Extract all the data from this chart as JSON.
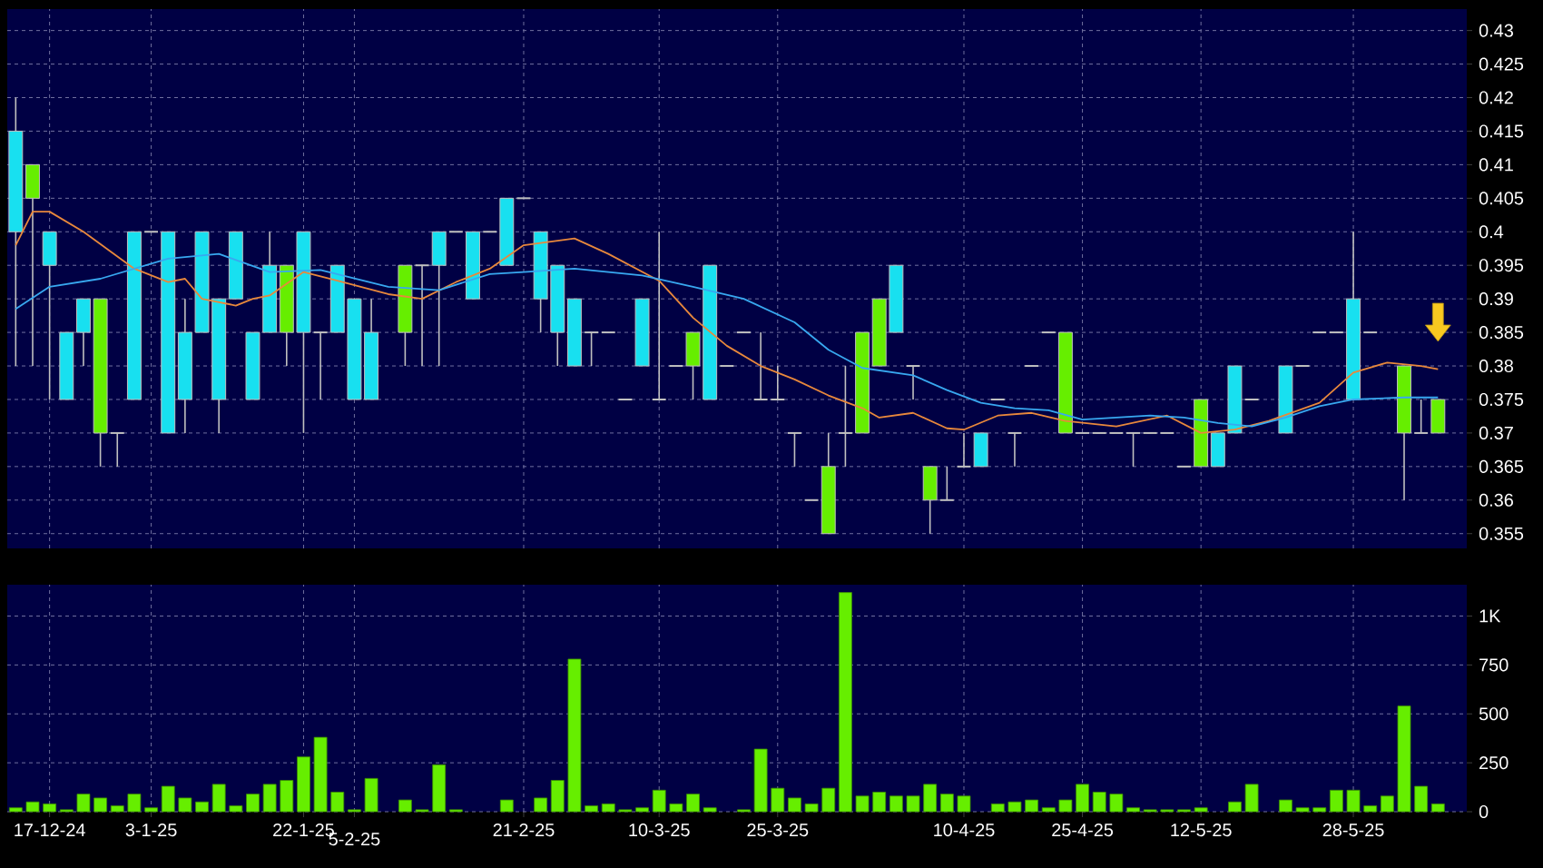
{
  "chart_data": [
    {
      "type": "candlestick",
      "categories": [
        null,
        null,
        null,
        null,
        null,
        null,
        null,
        null,
        null,
        null,
        null,
        null,
        null,
        null,
        null,
        null,
        null,
        null,
        null,
        null,
        null,
        null,
        null,
        null,
        null,
        null,
        null,
        null,
        null,
        null,
        null,
        null,
        null,
        null,
        null,
        null,
        null,
        null,
        null,
        null,
        null,
        null,
        null,
        null,
        null,
        null,
        null,
        null,
        null,
        null,
        null,
        null,
        null,
        null,
        null,
        null,
        null,
        null,
        null,
        null,
        null,
        null,
        null,
        null,
        null,
        null,
        null,
        null,
        null,
        null,
        null,
        null,
        null,
        null,
        null,
        null,
        null,
        null,
        null,
        null,
        null,
        null,
        null,
        null,
        null
      ],
      "ohlc": [
        [
          0.415,
          0.42,
          0.38,
          0.4
        ],
        [
          0.405,
          0.41,
          0.38,
          0.41
        ],
        [
          0.4,
          0.4,
          0.375,
          0.395
        ],
        [
          0.385,
          0.385,
          0.375,
          0.375
        ],
        [
          0.39,
          0.39,
          0.38,
          0.385
        ],
        [
          0.37,
          0.39,
          0.365,
          0.39
        ],
        [
          0.37,
          0.37,
          0.365,
          0.37
        ],
        [
          0.4,
          0.4,
          0.375,
          0.375
        ],
        [
          0.4,
          0.4,
          0.4,
          0.4
        ],
        [
          0.4,
          0.4,
          0.37,
          0.37
        ],
        [
          0.385,
          0.39,
          0.37,
          0.375
        ],
        [
          0.4,
          0.4,
          0.385,
          0.385
        ],
        [
          0.39,
          0.39,
          0.37,
          0.375
        ],
        [
          0.4,
          0.4,
          0.39,
          0.39
        ],
        [
          0.385,
          0.385,
          0.375,
          0.375
        ],
        [
          0.395,
          0.4,
          0.385,
          0.385
        ],
        [
          0.385,
          0.395,
          0.38,
          0.395
        ],
        [
          0.4,
          0.4,
          0.37,
          0.385
        ],
        [
          0.385,
          0.385,
          0.375,
          0.385
        ],
        [
          0.395,
          0.395,
          0.385,
          0.385
        ],
        [
          0.39,
          0.39,
          0.375,
          0.375
        ],
        [
          0.385,
          0.39,
          0.375,
          0.375
        ],
        null,
        [
          0.385,
          0.395,
          0.38,
          0.395
        ],
        [
          0.395,
          0.395,
          0.38,
          0.395
        ],
        [
          0.4,
          0.4,
          0.38,
          0.395
        ],
        [
          0.4,
          0.4,
          0.4,
          0.4
        ],
        [
          0.4,
          0.4,
          0.39,
          0.39
        ],
        [
          0.4,
          0.4,
          0.4,
          0.4
        ],
        [
          0.405,
          0.405,
          0.395,
          0.395
        ],
        [
          0.405,
          0.405,
          0.405,
          0.405
        ],
        [
          0.4,
          0.4,
          0.385,
          0.39
        ],
        [
          0.395,
          0.395,
          0.38,
          0.385
        ],
        [
          0.39,
          0.39,
          0.38,
          0.38
        ],
        [
          0.385,
          0.385,
          0.38,
          0.385
        ],
        [
          0.385,
          0.385,
          0.385,
          0.385
        ],
        [
          0.375,
          0.375,
          0.375,
          0.375
        ],
        [
          0.39,
          0.39,
          0.38,
          0.38
        ],
        [
          0.375,
          0.4,
          0.375,
          0.375
        ],
        [
          0.38,
          0.38,
          0.38,
          0.38
        ],
        [
          0.38,
          0.385,
          0.375,
          0.385
        ],
        [
          0.395,
          0.395,
          0.375,
          0.375
        ],
        [
          0.38,
          0.38,
          0.38,
          0.38
        ],
        [
          0.385,
          0.385,
          0.385,
          0.385
        ],
        [
          0.375,
          0.385,
          0.375,
          0.375
        ],
        [
          0.375,
          0.38,
          0.375,
          0.375
        ],
        [
          0.37,
          0.37,
          0.365,
          0.37
        ],
        [
          0.36,
          0.36,
          0.36,
          0.36
        ],
        [
          0.355,
          0.37,
          0.355,
          0.365
        ],
        [
          0.37,
          0.38,
          0.365,
          0.37
        ],
        [
          0.37,
          0.385,
          0.37,
          0.385
        ],
        [
          0.38,
          0.39,
          0.38,
          0.39
        ],
        [
          0.395,
          0.395,
          0.385,
          0.385
        ],
        [
          0.38,
          0.38,
          0.375,
          0.38
        ],
        [
          0.36,
          0.365,
          0.355,
          0.365
        ],
        [
          0.36,
          0.365,
          0.36,
          0.36
        ],
        [
          0.365,
          0.37,
          0.365,
          0.365
        ],
        [
          0.37,
          0.37,
          0.365,
          0.365
        ],
        [
          0.375,
          0.375,
          0.375,
          0.375
        ],
        [
          0.37,
          0.37,
          0.365,
          0.37
        ],
        [
          0.38,
          0.38,
          0.38,
          0.38
        ],
        [
          0.385,
          0.385,
          0.385,
          0.385
        ],
        [
          0.37,
          0.385,
          0.37,
          0.385
        ],
        [
          0.37,
          0.37,
          0.37,
          0.37
        ],
        [
          0.37,
          0.37,
          0.37,
          0.37
        ],
        [
          0.37,
          0.37,
          0.37,
          0.37
        ],
        [
          0.37,
          0.37,
          0.365,
          0.37
        ],
        [
          0.37,
          0.37,
          0.37,
          0.37
        ],
        [
          0.37,
          0.37,
          0.37,
          0.37
        ],
        [
          0.365,
          0.365,
          0.365,
          0.365
        ],
        [
          0.365,
          0.375,
          0.365,
          0.375
        ],
        [
          0.37,
          0.37,
          0.365,
          0.365
        ],
        [
          0.38,
          0.38,
          0.37,
          0.37
        ],
        [
          0.375,
          0.375,
          0.375,
          0.375
        ],
        null,
        [
          0.38,
          0.38,
          0.37,
          0.37
        ],
        [
          0.38,
          0.38,
          0.38,
          0.38
        ],
        [
          0.385,
          0.385,
          0.385,
          0.385
        ],
        [
          0.385,
          0.385,
          0.385,
          0.385
        ],
        [
          0.39,
          0.4,
          0.375,
          0.375
        ],
        [
          0.385,
          0.385,
          0.385,
          0.385
        ],
        null,
        [
          0.37,
          0.38,
          0.36,
          0.38
        ],
        [
          0.37,
          0.375,
          0.37,
          0.37
        ],
        [
          0.37,
          0.375,
          0.37,
          0.375
        ]
      ],
      "colors": [
        "#18e0f0",
        "#66ee00",
        "#18e0f0",
        "#18e0f0",
        "#18e0f0",
        "#66ee00",
        "#c0c0c0",
        "#18e0f0",
        "#c0c0c0",
        "#18e0f0",
        "#18e0f0",
        "#18e0f0",
        "#18e0f0",
        "#18e0f0",
        "#18e0f0",
        "#18e0f0",
        "#66ee00",
        "#18e0f0",
        "#c0c0c0",
        "#18e0f0",
        "#18e0f0",
        "#18e0f0",
        null,
        "#66ee00",
        "#c0c0c0",
        "#18e0f0",
        "#c0c0c0",
        "#18e0f0",
        "#c0c0c0",
        "#18e0f0",
        "#c0c0c0",
        "#18e0f0",
        "#18e0f0",
        "#18e0f0",
        "#c0c0c0",
        "#c0c0c0",
        "#c0c0c0",
        "#18e0f0",
        "#c0c0c0",
        "#c0c0c0",
        "#66ee00",
        "#18e0f0",
        "#c0c0c0",
        "#c0c0c0",
        "#c0c0c0",
        "#c0c0c0",
        "#c0c0c0",
        "#c0c0c0",
        "#66ee00",
        "#c0c0c0",
        "#66ee00",
        "#66ee00",
        "#18e0f0",
        "#c0c0c0",
        "#66ee00",
        "#c0c0c0",
        "#c0c0c0",
        "#18e0f0",
        "#c0c0c0",
        "#c0c0c0",
        "#c0c0c0",
        "#c0c0c0",
        "#66ee00",
        "#c0c0c0",
        "#c0c0c0",
        "#c0c0c0",
        "#c0c0c0",
        "#c0c0c0",
        "#c0c0c0",
        "#c0c0c0",
        "#66ee00",
        "#18e0f0",
        "#18e0f0",
        "#c0c0c0",
        null,
        "#18e0f0",
        "#c0c0c0",
        "#c0c0c0",
        "#c0c0c0",
        "#18e0f0",
        "#c0c0c0",
        null,
        "#66ee00",
        "#c0c0c0",
        "#66ee00"
      ],
      "series": [
        {
          "type": "line",
          "color": "#e8883c",
          "values": [
            0.398,
            0.403,
            0.403,
            null,
            0.4,
            null,
            null,
            0.3945,
            null,
            0.3925,
            0.393,
            0.39,
            null,
            0.389,
            0.39,
            0.3905,
            null,
            0.394,
            null,
            0.3927,
            null,
            null,
            0.3907,
            null,
            0.39,
            null,
            0.3925,
            null,
            0.3945,
            null,
            0.398,
            null,
            null,
            0.399,
            null,
            0.3967,
            null,
            null,
            0.3927,
            null,
            0.3872,
            null,
            0.383,
            null,
            0.38,
            null,
            0.378,
            null,
            0.3756,
            null,
            0.3737,
            0.3723,
            null,
            0.373,
            null,
            0.3707,
            0.3705,
            null,
            0.3726,
            null,
            0.373,
            null,
            0.3718,
            null,
            null,
            0.371,
            null,
            null,
            0.3726,
            null,
            0.37,
            null,
            0.3705,
            null,
            0.3718,
            null,
            null,
            0.3745,
            null,
            0.379,
            null,
            0.3805,
            null,
            0.38,
            0.3795
          ]
        },
        {
          "type": "line",
          "color": "#38a8f0",
          "values": [
            0.3885,
            null,
            0.3918,
            null,
            null,
            0.393,
            null,
            null,
            null,
            0.396,
            null,
            null,
            0.3967,
            null,
            null,
            0.394,
            null,
            null,
            0.3943,
            null,
            null,
            null,
            0.3918,
            null,
            null,
            0.3913,
            null,
            null,
            0.3937,
            null,
            0.394,
            null,
            null,
            0.3945,
            null,
            null,
            null,
            0.3935,
            null,
            null,
            0.3918,
            null,
            null,
            0.39,
            null,
            null,
            0.3865,
            null,
            0.3824,
            null,
            0.3797,
            null,
            null,
            0.3786,
            null,
            0.3764,
            null,
            0.3745,
            null,
            0.3737,
            null,
            0.3734,
            null,
            0.372,
            null,
            null,
            null,
            0.3726,
            null,
            0.3723,
            null,
            0.3715,
            null,
            0.371,
            null,
            0.3723,
            null,
            0.374,
            null,
            0.375,
            null,
            null,
            0.3753,
            null,
            0.3753
          ]
        }
      ],
      "ylim": [
        0.3528,
        0.4332
      ],
      "yticks": [
        0.355,
        0.36,
        0.365,
        0.37,
        0.375,
        0.38,
        0.385,
        0.39,
        0.395,
        0.4,
        0.405,
        0.41,
        0.415,
        0.42,
        0.425,
        0.43
      ],
      "grid": true
    },
    {
      "type": "bar",
      "categories": [
        null,
        null,
        "17-12-24",
        null,
        null,
        null,
        null,
        null,
        "3-1-25",
        null,
        null,
        null,
        null,
        null,
        null,
        null,
        null,
        "22-1-25",
        null,
        null,
        "5-2-25",
        null,
        null,
        null,
        null,
        null,
        null,
        null,
        null,
        null,
        "21-2-25",
        null,
        null,
        null,
        null,
        null,
        null,
        null,
        "10-3-25",
        null,
        null,
        null,
        null,
        null,
        null,
        "25-3-25",
        null,
        null,
        null,
        null,
        null,
        null,
        null,
        null,
        null,
        null,
        "10-4-25",
        null,
        null,
        null,
        null,
        null,
        null,
        "25-4-25",
        null,
        null,
        null,
        null,
        null,
        null,
        "12-5-25",
        null,
        null,
        null,
        null,
        null,
        null,
        null,
        null,
        "28-5-25",
        null,
        null,
        null,
        null,
        null
      ],
      "values": [
        20,
        50,
        40,
        10,
        90,
        70,
        30,
        90,
        20,
        130,
        70,
        50,
        140,
        30,
        90,
        140,
        160,
        280,
        380,
        100,
        10,
        170,
        null,
        60,
        10,
        240,
        10,
        null,
        null,
        60,
        null,
        70,
        160,
        780,
        30,
        40,
        10,
        20,
        110,
        40,
        90,
        20,
        null,
        10,
        320,
        120,
        70,
        40,
        120,
        1120,
        80,
        100,
        80,
        80,
        140,
        90,
        80,
        null,
        40,
        50,
        60,
        20,
        60,
        140,
        100,
        90,
        20,
        10,
        10,
        10,
        20,
        null,
        50,
        140,
        null,
        60,
        20,
        20,
        110,
        110,
        30,
        80,
        540,
        130,
        40
      ],
      "color": "#66ee00",
      "ylim": [
        0,
        1160
      ],
      "yticks": [
        0,
        250,
        500,
        750,
        {
          "value": 1000,
          "label": "1K"
        }
      ],
      "grid": true
    }
  ]
}
